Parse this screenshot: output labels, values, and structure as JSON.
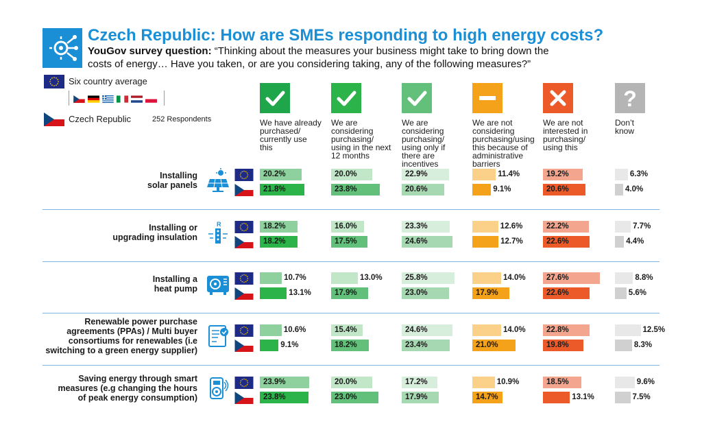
{
  "header": {
    "title": "Czech Republic: How are SMEs responding to high energy costs?",
    "question_label": "YouGov survey question:",
    "question_line1": " “Thinking about the measures your business might take to bring down the",
    "question_line2": "costs of energy… Have you taken, or are you considering taking, any of the following measures?”"
  },
  "legend": {
    "avg_label": "Six country average",
    "cz_label": "Czech Republic",
    "respondents": "252 Respondents"
  },
  "colors": {
    "blue": "#1a8fd6",
    "navy": "#1d2a86",
    "red": "#d7141a",
    "divider": "#7fb3df"
  },
  "chart_data": {
    "type": "bar",
    "columns": [
      {
        "label": "We have already\npurchased/\ncurrently use\nthis",
        "icon": "check-icon",
        "color_avg": "#8fd19e",
        "color_cz": "#2cb34a"
      },
      {
        "label": "We are\nconsidering\npurchasing/\nusing in the next\n12 months",
        "icon": "check-icon",
        "color_avg": "#c2e6c8",
        "color_cz": "#62c07a"
      },
      {
        "label": "We are\nconsidering\npurchasing/\nusing only if\nthere are\nincentives",
        "icon": "check-icon",
        "color_avg": "#d8eedc",
        "color_cz": "#a6d9b1"
      },
      {
        "label": "We are not\nconsidering\npurchasing/using\nthis because of\nadministrative\nbarriers",
        "icon": "minus-icon",
        "color_avg": "#fbd18a",
        "color_cz": "#f5a21b"
      },
      {
        "label": "We are not\ninterested in\npurchasing/\nusing this",
        "icon": "cross-icon",
        "color_avg": "#f4a58d",
        "color_cz": "#ec5a2a"
      },
      {
        "label": "Don’t\nknow",
        "icon": "question-icon",
        "color_avg": "#e8e8e8",
        "color_cz": "#d0d0d0"
      }
    ],
    "rows": [
      {
        "label": "Installing\nsolar panels",
        "icon": "solar-panel-icon",
        "avg": [
          20.2,
          20.0,
          22.9,
          11.4,
          19.2,
          6.3
        ],
        "cz": [
          21.8,
          23.8,
          20.6,
          9.1,
          20.6,
          4.0
        ]
      },
      {
        "label": "Installing or\nupgrading insulation",
        "icon": "insulation-icon",
        "avg": [
          18.2,
          16.0,
          23.3,
          12.6,
          22.2,
          7.7
        ],
        "cz": [
          18.2,
          17.5,
          24.6,
          12.7,
          22.6,
          4.4
        ]
      },
      {
        "label": "Installing a\nheat pump",
        "icon": "heat-pump-icon",
        "avg": [
          10.7,
          13.0,
          25.8,
          14.0,
          27.6,
          8.8
        ],
        "cz": [
          13.1,
          17.9,
          23.0,
          17.9,
          22.6,
          5.6
        ]
      },
      {
        "label": "Renewable power purchase\nagreements (PPAs) / Multi buyer\nconsortiums for renewables (i.e\nswitching to a green energy supplier)",
        "icon": "contract-icon",
        "avg": [
          10.6,
          15.4,
          24.6,
          14.0,
          22.8,
          12.5
        ],
        "cz": [
          9.1,
          18.2,
          23.4,
          21.0,
          19.8,
          8.3
        ]
      },
      {
        "label": "Saving energy through smart\nmeasures (e.g changing the hours\nof peak energy consumption)",
        "icon": "smart-meter-icon",
        "avg": [
          23.9,
          20.0,
          17.2,
          10.9,
          18.5,
          9.6
        ],
        "cz": [
          23.8,
          23.0,
          17.9,
          14.7,
          13.1,
          7.5
        ]
      }
    ]
  }
}
